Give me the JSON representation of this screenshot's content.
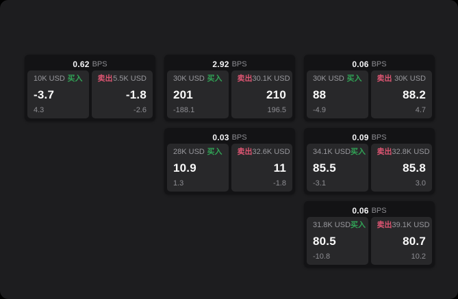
{
  "theme": {
    "frame_bg": "#000000",
    "window_bg": "#1d1d1f",
    "card_bg": "#131315",
    "panel_bg": "#28282a",
    "text_primary": "#f5f5f7",
    "text_muted": "#8e8e93",
    "buy_color": "#31a356",
    "sell_color": "#dd5572"
  },
  "labels": {
    "bps_unit": "BPS",
    "buy": "买入",
    "sell": "卖出"
  },
  "cards": [
    {
      "bps": "0.62",
      "row": 1,
      "col": 1,
      "buy": {
        "amount": "10K USD",
        "price": "-3.7",
        "delta": "4.3"
      },
      "sell": {
        "amount": "5.5K USD",
        "price": "-1.8",
        "delta": "-2.6"
      }
    },
    {
      "bps": "2.92",
      "row": 1,
      "col": 2,
      "buy": {
        "amount": "30K USD",
        "price": "201",
        "delta": "-188.1"
      },
      "sell": {
        "amount": "30.1K USD",
        "price": "210",
        "delta": "196.5"
      }
    },
    {
      "bps": "0.06",
      "row": 1,
      "col": 3,
      "buy": {
        "amount": "30K USD",
        "price": "88",
        "delta": "-4.9"
      },
      "sell": {
        "amount": "30K USD",
        "price": "88.2",
        "delta": "4.7"
      }
    },
    {
      "bps": "0.03",
      "row": 2,
      "col": 2,
      "buy": {
        "amount": "28K USD",
        "price": "10.9",
        "delta": "1.3"
      },
      "sell": {
        "amount": "32.6K USD",
        "price": "11",
        "delta": "-1.8"
      }
    },
    {
      "bps": "0.09",
      "row": 2,
      "col": 3,
      "buy": {
        "amount": "34.1K USD",
        "price": "85.5",
        "delta": "-3.1"
      },
      "sell": {
        "amount": "32.8K USD",
        "price": "85.8",
        "delta": "3.0"
      }
    },
    {
      "bps": "0.06",
      "row": 3,
      "col": 3,
      "buy": {
        "amount": "31.8K USD",
        "price": "80.5",
        "delta": "-10.8"
      },
      "sell": {
        "amount": "39.1K USD",
        "price": "80.7",
        "delta": "10.2"
      }
    }
  ]
}
